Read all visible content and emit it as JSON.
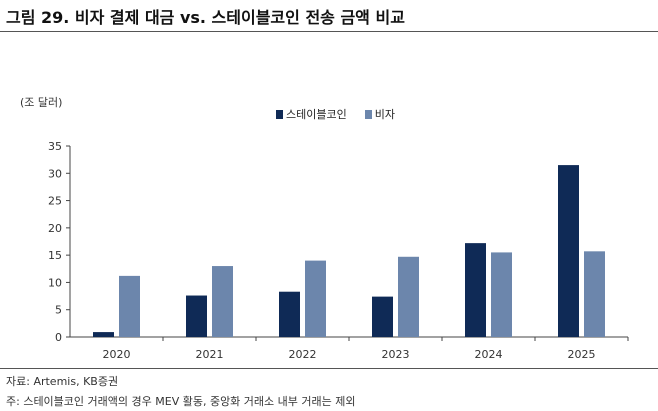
{
  "title": "그림 29. 비자 결제 대금 vs. 스테이블코인 전송 금액 비교",
  "source": "자료: Artemis, KB증권",
  "note": "주: 스테이블코인 거래액의 경우 MEV 활동, 중앙화 거래소 내부 거래는 제외",
  "colors": {
    "stablecoin": "#0f2a56",
    "visa": "#6c86ac"
  },
  "chart_data": {
    "type": "bar",
    "unit_label": "(조 달러)",
    "categories": [
      "2020",
      "2021",
      "2022",
      "2023",
      "2024",
      "2025"
    ],
    "series": [
      {
        "name": "스테이블코인",
        "values": [
          0.9,
          7.6,
          8.3,
          7.4,
          17.2,
          31.5
        ]
      },
      {
        "name": "비자",
        "values": [
          11.2,
          13.0,
          14.0,
          14.7,
          15.5,
          15.7
        ]
      }
    ],
    "ylim": [
      0,
      35
    ],
    "yticks": [
      0,
      5,
      10,
      15,
      20,
      25,
      30,
      35
    ],
    "grid": false,
    "legend": "top-center"
  }
}
